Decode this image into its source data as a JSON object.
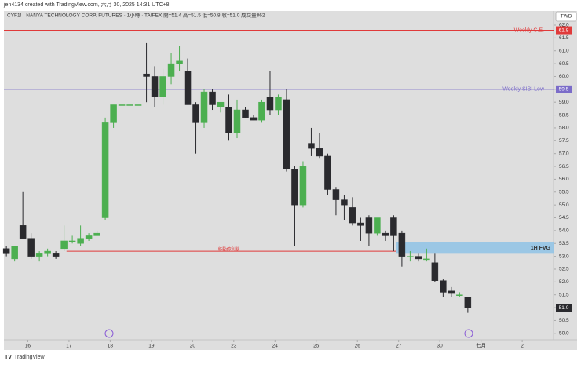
{
  "header": {
    "credit": "jen4134 created with TradingView.com, 六月 30, 2025 14:31 UTC+8",
    "symbol_line": "CYF1! · NANYA TECHNOLOGY CORP. FUTURES · 1小時 · TAIFEX   開=51.4  高=51.5  低=50.8  收=51.0  成交量862"
  },
  "currency": "TWD",
  "brand": "TradingView",
  "chart_data": {
    "type": "candlestick",
    "open": [
      53.3,
      52.9,
      54.2,
      53.7,
      53.0,
      53.1,
      53.1,
      53.3,
      53.6,
      53.5,
      53.7,
      53.8,
      54.5,
      58.2,
      58.9,
      58.9,
      58.9,
      60.1,
      60.0,
      59.2,
      60.0,
      60.5,
      60.2,
      58.9,
      58.2,
      59.4,
      58.8,
      58.8,
      57.8,
      58.7,
      58.4,
      58.3,
      59.2,
      58.7,
      59.1,
      56.4,
      55.0,
      57.4,
      57.2,
      56.9,
      55.6,
      55.2,
      54.9,
      54.3,
      54.5,
      53.9,
      53.9,
      54.5,
      53.9,
      53.0,
      53.0,
      52.9,
      52.75,
      52.05,
      51.65,
      51.5,
      51.4
    ],
    "high": [
      53.4,
      53.4,
      55.5,
      53.9,
      53.2,
      53.3,
      53.2,
      54.2,
      53.8,
      54.2,
      53.9,
      54.0,
      58.4,
      58.9,
      58.9,
      58.9,
      58.9,
      61.3,
      60.4,
      60.3,
      60.9,
      61.2,
      60.7,
      59.0,
      59.5,
      59.5,
      59.0,
      59.3,
      59.1,
      58.8,
      58.5,
      59.1,
      60.2,
      59.3,
      59.5,
      56.5,
      56.7,
      58.0,
      57.8,
      57.0,
      55.7,
      55.4,
      55.3,
      54.5,
      54.6,
      54.5,
      54.0,
      54.6,
      54.0,
      53.2,
      53.1,
      53.3,
      53.1,
      52.1,
      51.8,
      51.6,
      51.4
    ],
    "low": [
      53.0,
      52.8,
      53.7,
      52.9,
      52.8,
      53.0,
      52.9,
      53.2,
      53.5,
      53.4,
      53.6,
      53.8,
      54.4,
      58.0,
      58.9,
      58.9,
      58.9,
      59.0,
      58.8,
      58.9,
      59.7,
      60.2,
      58.9,
      57.0,
      58.0,
      58.7,
      58.6,
      57.5,
      57.6,
      58.4,
      58.3,
      58.2,
      58.5,
      58.5,
      56.3,
      53.4,
      54.9,
      56.9,
      56.8,
      55.4,
      54.6,
      54.4,
      54.2,
      53.6,
      53.4,
      53.8,
      53.6,
      53.2,
      52.6,
      52.8,
      52.8,
      52.8,
      52.0,
      51.4,
      51.4,
      51.4,
      50.8
    ],
    "close": [
      53.1,
      53.4,
      53.7,
      53.0,
      53.1,
      53.2,
      53.0,
      53.6,
      53.6,
      53.7,
      53.8,
      53.9,
      58.2,
      58.9,
      58.9,
      58.9,
      58.9,
      60.0,
      59.2,
      60.0,
      60.5,
      60.6,
      58.9,
      58.2,
      59.4,
      58.9,
      59.0,
      57.8,
      58.7,
      58.4,
      58.3,
      59.0,
      58.7,
      59.2,
      56.4,
      55.0,
      56.5,
      57.2,
      56.9,
      55.6,
      55.2,
      55.0,
      54.3,
      54.2,
      53.9,
      54.5,
      53.8,
      53.8,
      53.0,
      53.0,
      52.9,
      52.9,
      52.05,
      51.6,
      51.55,
      51.5,
      51.0
    ],
    "up_color": "#4caf50",
    "down_color": "#2a2a2e",
    "ylim": [
      49.75,
      62.55
    ],
    "yticks": [
      {
        "value": 50,
        "label": "50.0"
      },
      50.5,
      {
        "value": 51,
        "label": "51.0"
      },
      51.5,
      {
        "value": 52,
        "label": "52.0"
      },
      52.5,
      {
        "value": 53,
        "label": "53.0"
      },
      53.5,
      {
        "value": 54,
        "label": "54.0"
      },
      54.5,
      {
        "value": 55,
        "label": "55.0"
      },
      55.5,
      {
        "value": 56,
        "label": "56.0"
      },
      56.5,
      {
        "value": 57,
        "label": "57.0"
      },
      57.5,
      {
        "value": 58,
        "label": "58.0"
      },
      58.5,
      {
        "value": 59,
        "label": "59.0"
      },
      59.5,
      {
        "value": 60,
        "label": "60.0"
      },
      60.5,
      {
        "value": 61,
        "label": "61.0"
      },
      61.5,
      {
        "value": 62,
        "label": "62.0"
      }
    ],
    "xlim": [
      -0.3,
      66.4
    ],
    "xticks": [
      {
        "value": 2.6,
        "label": "16"
      },
      {
        "value": 7.6,
        "label": "17"
      },
      {
        "value": 12.6,
        "label": "18"
      },
      {
        "value": 17.6,
        "label": "19"
      },
      {
        "value": 22.6,
        "label": "20"
      },
      {
        "value": 27.6,
        "label": "23"
      },
      {
        "value": 32.6,
        "label": "24"
      },
      {
        "value": 37.6,
        "label": "25"
      },
      {
        "value": 42.6,
        "label": "26"
      },
      {
        "value": 47.6,
        "label": "27"
      },
      {
        "value": 52.6,
        "label": "30"
      },
      {
        "value": 57.6,
        "label": "七月"
      },
      {
        "value": 62.6,
        "label": "2"
      }
    ],
    "levels": [
      {
        "label": "Weekly C.E.",
        "value": 61.8,
        "color": "#e03a3a"
      },
      {
        "label": "Weekly SIBI Low",
        "value": 59.5,
        "color": "#7b6cc9"
      }
    ],
    "trail_stop": {
      "label": "移動停利點",
      "value": 53.2,
      "color": "#e03a3a"
    },
    "zone": {
      "label": "1H FVG",
      "low": 53.1,
      "high": 53.55,
      "color": "#8fc3e6"
    },
    "last_price": {
      "value": 51,
      "label": "51.0"
    }
  }
}
